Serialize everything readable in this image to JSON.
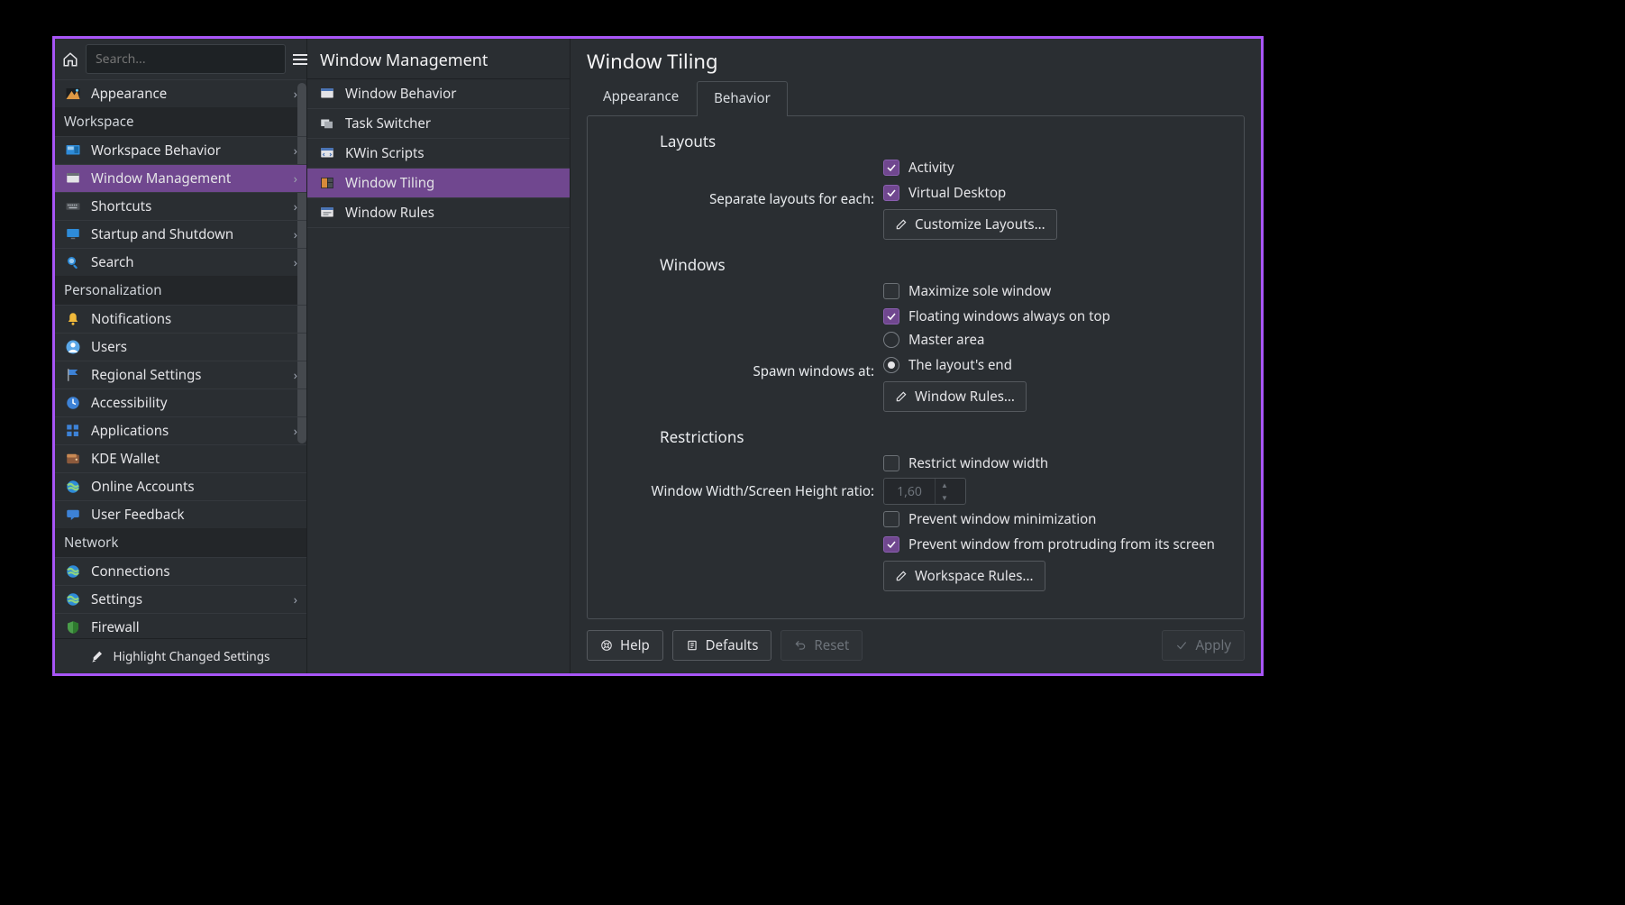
{
  "colors": {
    "accent": "#70478f",
    "window_border": "#a855f7",
    "bg": "#2a2e32",
    "text": "#e4e4e7"
  },
  "search": {
    "placeholder": "Search..."
  },
  "sidebar": {
    "sections": [
      {
        "header": null,
        "items": [
          {
            "label": "Appearance",
            "icon": "appearance",
            "chevron": true
          }
        ]
      },
      {
        "header": "Workspace",
        "items": [
          {
            "label": "Workspace Behavior",
            "icon": "workspace",
            "chevron": true
          },
          {
            "label": "Window Management",
            "icon": "window",
            "chevron": true,
            "selected": true
          },
          {
            "label": "Shortcuts",
            "icon": "keyboard",
            "chevron": true
          },
          {
            "label": "Startup and Shutdown",
            "icon": "screen",
            "chevron": true
          },
          {
            "label": "Search",
            "icon": "search",
            "chevron": true
          }
        ]
      },
      {
        "header": "Personalization",
        "items": [
          {
            "label": "Notifications",
            "icon": "bell"
          },
          {
            "label": "Users",
            "icon": "users"
          },
          {
            "label": "Regional Settings",
            "icon": "flag",
            "chevron": true
          },
          {
            "label": "Accessibility",
            "icon": "clock"
          },
          {
            "label": "Applications",
            "icon": "apps",
            "chevron": true
          },
          {
            "label": "KDE Wallet",
            "icon": "wallet"
          },
          {
            "label": "Online Accounts",
            "icon": "globe"
          },
          {
            "label": "User Feedback",
            "icon": "feedback"
          }
        ]
      },
      {
        "header": "Network",
        "items": [
          {
            "label": "Connections",
            "icon": "globe"
          },
          {
            "label": "Settings",
            "icon": "globe",
            "chevron": true
          },
          {
            "label": "Firewall",
            "icon": "shield"
          }
        ]
      }
    ],
    "footer": "Highlight Changed Settings"
  },
  "midcol": {
    "title": "Window Management",
    "items": [
      {
        "label": "Window Behavior",
        "icon": "window-behavior"
      },
      {
        "label": "Task Switcher",
        "icon": "task-switcher"
      },
      {
        "label": "KWin Scripts",
        "icon": "kwin-scripts"
      },
      {
        "label": "Window Tiling",
        "icon": "window-tiling",
        "selected": true
      },
      {
        "label": "Window Rules",
        "icon": "window-rules"
      }
    ]
  },
  "main": {
    "title": "Window Tiling",
    "tabs": [
      {
        "label": "Appearance"
      },
      {
        "label": "Behavior",
        "active": true
      }
    ],
    "layouts": {
      "section_title": "Layouts",
      "separate_label": "Separate layouts for each:",
      "activity": {
        "label": "Activity",
        "checked": true
      },
      "virtual_desktop": {
        "label": "Virtual Desktop",
        "checked": true
      },
      "customize_btn": "Customize Layouts..."
    },
    "windows": {
      "section_title": "Windows",
      "maximize_sole": {
        "label": "Maximize sole window",
        "checked": false
      },
      "floating_on_top": {
        "label": "Floating windows always on top",
        "checked": true
      },
      "spawn_label": "Spawn windows at:",
      "spawn_master": {
        "label": "Master area",
        "selected": false
      },
      "spawn_end": {
        "label": "The layout's end",
        "selected": true
      },
      "window_rules_btn": "Window Rules..."
    },
    "restrictions": {
      "section_title": "Restrictions",
      "restrict_width": {
        "label": "Restrict window width",
        "checked": false
      },
      "ratio_label": "Window Width/Screen Height ratio:",
      "ratio_value": "1,60",
      "prevent_min": {
        "label": "Prevent window minimization",
        "checked": false
      },
      "prevent_protrude": {
        "label": "Prevent window from protruding from its screen",
        "checked": true
      },
      "workspace_rules_btn": "Workspace Rules..."
    }
  },
  "footer": {
    "help": "Help",
    "defaults": "Defaults",
    "reset": "Reset",
    "apply": "Apply"
  }
}
